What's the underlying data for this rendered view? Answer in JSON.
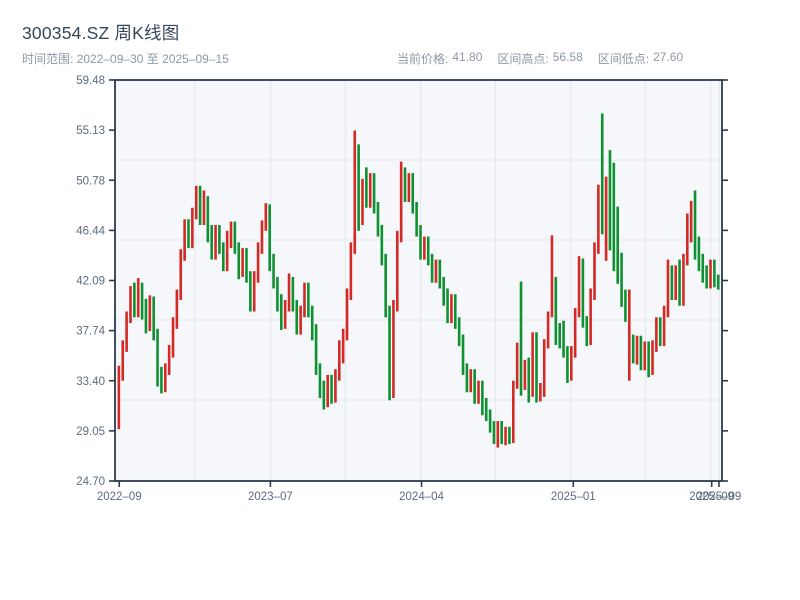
{
  "header": {
    "title": "300354.SZ 周K线图",
    "range_label": "时间范围:",
    "range_start": "2022–09–30",
    "range_to": "至",
    "range_end": "2025–09–15",
    "stats": [
      {
        "label": "当前价格:",
        "value": "41.80"
      },
      {
        "label": "区间高点:",
        "value": "56.58"
      },
      {
        "label": "区间低点:",
        "value": "27.60"
      }
    ]
  },
  "chart_data": {
    "type": "candlestick",
    "title": "300354.SZ 周K线图",
    "xlabel": "",
    "ylabel": "",
    "ylim": [
      24.7,
      59.48
    ],
    "grid": true,
    "y_ticks": [
      "59.48",
      "55.13",
      "50.78",
      "46.44",
      "42.09",
      "37.74",
      "33.40",
      "29.05",
      "24.70"
    ],
    "x_ticks": [
      {
        "label": "2022–09",
        "f": 0.007
      },
      {
        "label": "2023–07",
        "f": 0.256
      },
      {
        "label": "2024–04",
        "f": 0.505
      },
      {
        "label": "2025–01",
        "f": 0.755
      },
      {
        "label": "2025–09",
        "f": 0.983
      },
      {
        "label": "2025–09",
        "f": 0.995
      }
    ],
    "colors": {
      "up": "#d32a26",
      "down": "#0f9132",
      "frame": "#2c3a4d",
      "grid": "#e4e8ed",
      "plot_bg": "#f5f7fa",
      "tick_text": "#5d6c7e",
      "title_text": "#33475b",
      "subtitle_text": "#8d98a7"
    },
    "up_means": "rise(red)",
    "down_means": "fall(green)",
    "series": [
      {
        "name": "weekly-ohlc",
        "ohlc": [
          [
            29.8,
            34.7,
            29.2,
            34.3
          ],
          [
            34.3,
            36.9,
            33.4,
            36.4
          ],
          [
            36.4,
            39.4,
            35.9,
            38.9
          ],
          [
            38.9,
            41.6,
            38.4,
            40.9
          ],
          [
            40.9,
            41.9,
            38.9,
            39.4
          ],
          [
            39.4,
            42.3,
            38.9,
            41.4
          ],
          [
            41.4,
            41.9,
            38.7,
            39.2
          ],
          [
            39.2,
            40.5,
            37.5,
            38.2
          ],
          [
            38.2,
            40.8,
            37.7,
            40.2
          ],
          [
            40.2,
            40.7,
            36.9,
            37.4
          ],
          [
            37.4,
            37.9,
            32.9,
            33.4
          ],
          [
            33.4,
            34.6,
            32.3,
            32.9
          ],
          [
            32.9,
            34.9,
            32.4,
            34.4
          ],
          [
            34.4,
            36.5,
            33.9,
            35.9
          ],
          [
            35.9,
            38.9,
            35.4,
            38.4
          ],
          [
            38.4,
            41.3,
            37.9,
            40.9
          ],
          [
            40.9,
            44.8,
            40.4,
            44.3
          ],
          [
            44.3,
            47.4,
            43.8,
            46.9
          ],
          [
            46.9,
            47.4,
            44.9,
            45.4
          ],
          [
            45.4,
            48.4,
            44.9,
            47.9
          ],
          [
            47.9,
            50.3,
            47.4,
            49.8
          ],
          [
            49.8,
            50.3,
            46.9,
            47.4
          ],
          [
            47.4,
            49.9,
            46.9,
            48.9
          ],
          [
            48.9,
            49.4,
            45.4,
            45.9
          ],
          [
            45.9,
            46.9,
            43.9,
            44.4
          ],
          [
            44.4,
            46.9,
            43.9,
            46.4
          ],
          [
            46.4,
            46.9,
            44.4,
            44.9
          ],
          [
            44.9,
            45.4,
            42.9,
            43.4
          ],
          [
            43.4,
            46.4,
            42.9,
            45.9
          ],
          [
            45.9,
            47.2,
            44.9,
            46.7
          ],
          [
            46.7,
            47.2,
            44.4,
            44.9
          ],
          [
            44.9,
            45.4,
            42.2,
            42.9
          ],
          [
            42.9,
            44.9,
            42.4,
            44.4
          ],
          [
            44.4,
            44.9,
            41.9,
            42.4
          ],
          [
            42.4,
            42.9,
            39.4,
            39.9
          ],
          [
            39.9,
            42.9,
            39.4,
            42.4
          ],
          [
            42.4,
            45.4,
            41.9,
            44.9
          ],
          [
            44.9,
            47.3,
            44.4,
            46.9
          ],
          [
            46.9,
            48.8,
            46.4,
            48.3
          ],
          [
            48.3,
            48.7,
            42.9,
            43.4
          ],
          [
            43.4,
            44.4,
            41.4,
            41.9
          ],
          [
            41.9,
            42.4,
            39.4,
            39.9
          ],
          [
            39.9,
            40.9,
            37.8,
            38.4
          ],
          [
            38.4,
            40.4,
            37.9,
            39.9
          ],
          [
            39.9,
            42.7,
            39.4,
            41.9
          ],
          [
            41.9,
            42.4,
            39.4,
            39.9
          ],
          [
            39.9,
            40.4,
            37.4,
            37.9
          ],
          [
            37.9,
            39.9,
            37.4,
            39.4
          ],
          [
            39.4,
            41.9,
            38.9,
            41.4
          ],
          [
            41.4,
            41.9,
            38.9,
            39.4
          ],
          [
            39.4,
            39.9,
            36.9,
            37.4
          ],
          [
            37.4,
            38.3,
            33.9,
            34.4
          ],
          [
            34.4,
            34.9,
            31.9,
            32.4
          ],
          [
            32.4,
            33.4,
            30.9,
            31.4
          ],
          [
            31.4,
            33.9,
            31.1,
            33.4
          ],
          [
            33.4,
            33.9,
            31.4,
            31.9
          ],
          [
            31.9,
            34.4,
            31.5,
            33.9
          ],
          [
            33.9,
            36.9,
            33.4,
            36.4
          ],
          [
            36.4,
            37.9,
            34.9,
            37.4
          ],
          [
            37.4,
            41.4,
            36.9,
            40.9
          ],
          [
            40.9,
            45.4,
            40.4,
            44.9
          ],
          [
            44.9,
            55.1,
            44.4,
            52.4
          ],
          [
            52.4,
            53.9,
            46.4,
            47.4
          ],
          [
            47.4,
            50.9,
            46.9,
            50.4
          ],
          [
            50.4,
            51.9,
            48.4,
            48.9
          ],
          [
            48.9,
            51.4,
            48.4,
            50.9
          ],
          [
            50.9,
            51.4,
            47.9,
            48.4
          ],
          [
            48.4,
            48.9,
            45.9,
            46.4
          ],
          [
            46.4,
            46.9,
            43.4,
            43.9
          ],
          [
            43.9,
            44.4,
            38.9,
            39.4
          ],
          [
            39.4,
            39.9,
            31.7,
            32.9
          ],
          [
            32.9,
            40.4,
            31.9,
            39.9
          ],
          [
            39.9,
            46.4,
            39.4,
            45.9
          ],
          [
            45.9,
            52.4,
            45.4,
            51.4
          ],
          [
            51.4,
            51.9,
            48.9,
            49.4
          ],
          [
            49.4,
            51.4,
            48.9,
            50.9
          ],
          [
            50.9,
            51.4,
            47.9,
            48.4
          ],
          [
            48.4,
            48.9,
            45.9,
            46.4
          ],
          [
            46.4,
            46.9,
            43.9,
            44.4
          ],
          [
            44.4,
            45.9,
            43.9,
            45.4
          ],
          [
            45.4,
            45.9,
            43.4,
            43.9
          ],
          [
            43.9,
            44.4,
            41.9,
            42.4
          ],
          [
            42.4,
            43.9,
            41.9,
            43.4
          ],
          [
            43.4,
            43.9,
            41.4,
            41.9
          ],
          [
            41.9,
            42.4,
            39.9,
            40.4
          ],
          [
            40.4,
            41.4,
            38.4,
            38.9
          ],
          [
            38.9,
            40.9,
            38.4,
            40.4
          ],
          [
            40.4,
            40.9,
            37.9,
            38.4
          ],
          [
            38.4,
            38.9,
            36.4,
            36.9
          ],
          [
            36.9,
            37.4,
            33.9,
            34.4
          ],
          [
            34.4,
            34.9,
            32.4,
            32.9
          ],
          [
            32.9,
            34.4,
            32.4,
            33.9
          ],
          [
            33.9,
            34.4,
            31.4,
            31.9
          ],
          [
            31.9,
            33.4,
            31.4,
            32.9
          ],
          [
            32.9,
            33.4,
            30.4,
            30.9
          ],
          [
            30.9,
            31.9,
            29.9,
            30.4
          ],
          [
            30.4,
            30.9,
            28.9,
            29.4
          ],
          [
            29.4,
            29.9,
            27.9,
            28.4
          ],
          [
            28.4,
            29.9,
            27.6,
            29.4
          ],
          [
            29.4,
            29.9,
            27.9,
            28.2
          ],
          [
            28.2,
            29.4,
            27.8,
            28.9
          ],
          [
            28.9,
            29.4,
            27.9,
            28.2
          ],
          [
            28.2,
            33.4,
            28.0,
            33.0
          ],
          [
            33.0,
            36.7,
            32.7,
            36.4
          ],
          [
            36.4,
            42.0,
            32.1,
            33.2
          ],
          [
            33.2,
            35.2,
            32.6,
            34.9
          ],
          [
            34.9,
            35.4,
            31.5,
            32.4
          ],
          [
            32.4,
            37.6,
            32.0,
            37.2
          ],
          [
            37.2,
            37.6,
            31.5,
            32.2
          ],
          [
            32.2,
            33.2,
            31.6,
            32.4
          ],
          [
            32.4,
            37.0,
            32.0,
            36.7
          ],
          [
            36.7,
            39.4,
            36.2,
            38.9
          ],
          [
            39.2,
            46.0,
            38.9,
            41.9
          ],
          [
            41.9,
            42.4,
            36.5,
            37.2
          ],
          [
            37.2,
            38.4,
            36.2,
            36.5
          ],
          [
            36.5,
            38.6,
            35.4,
            35.9
          ],
          [
            35.9,
            36.4,
            33.2,
            33.9
          ],
          [
            33.9,
            36.4,
            33.4,
            35.9
          ],
          [
            35.9,
            39.7,
            35.4,
            39.2
          ],
          [
            39.2,
            44.2,
            38.9,
            43.7
          ],
          [
            43.7,
            44.0,
            38.0,
            38.5
          ],
          [
            38.5,
            39.0,
            36.4,
            36.9
          ],
          [
            36.9,
            41.4,
            36.5,
            40.9
          ],
          [
            40.9,
            45.4,
            40.4,
            44.9
          ],
          [
            44.9,
            50.4,
            44.4,
            49.9
          ],
          [
            49.9,
            56.58,
            46.1,
            46.6
          ],
          [
            46.6,
            51.1,
            43.8,
            50.6
          ],
          [
            50.6,
            53.4,
            44.7,
            45.4
          ],
          [
            45.4,
            52.3,
            42.9,
            43.4
          ],
          [
            43.4,
            48.5,
            41.8,
            42.3
          ],
          [
            42.3,
            44.5,
            39.8,
            40.3
          ],
          [
            40.3,
            41.3,
            38.5,
            38.9
          ],
          [
            33.9,
            41.3,
            33.4,
            36.9
          ],
          [
            36.9,
            37.4,
            34.9,
            35.3
          ],
          [
            35.3,
            37.3,
            34.8,
            36.8
          ],
          [
            36.8,
            37.3,
            34.3,
            34.8
          ],
          [
            34.8,
            36.8,
            34.3,
            36.3
          ],
          [
            36.3,
            36.8,
            33.7,
            34.2
          ],
          [
            34.2,
            36.9,
            33.9,
            36.4
          ],
          [
            36.4,
            38.9,
            35.9,
            38.4
          ],
          [
            38.4,
            38.9,
            36.4,
            36.9
          ],
          [
            36.9,
            39.9,
            36.4,
            39.4
          ],
          [
            39.4,
            43.9,
            38.9,
            42.9
          ],
          [
            42.9,
            43.4,
            40.4,
            40.9
          ],
          [
            40.9,
            43.4,
            40.4,
            42.9
          ],
          [
            42.9,
            43.9,
            39.9,
            40.4
          ],
          [
            40.4,
            44.4,
            39.9,
            43.9
          ],
          [
            43.9,
            47.9,
            43.4,
            47.2
          ],
          [
            47.2,
            49.0,
            45.4,
            48.2
          ],
          [
            48.2,
            49.9,
            43.9,
            44.4
          ],
          [
            44.4,
            45.9,
            42.9,
            43.4
          ],
          [
            43.4,
            44.4,
            41.9,
            42.4
          ],
          [
            42.4,
            43.4,
            41.4,
            41.9
          ],
          [
            41.9,
            43.9,
            41.4,
            43.4
          ],
          [
            43.4,
            43.9,
            41.5,
            42.1
          ],
          [
            42.1,
            42.6,
            41.3,
            41.8
          ]
        ]
      }
    ]
  }
}
